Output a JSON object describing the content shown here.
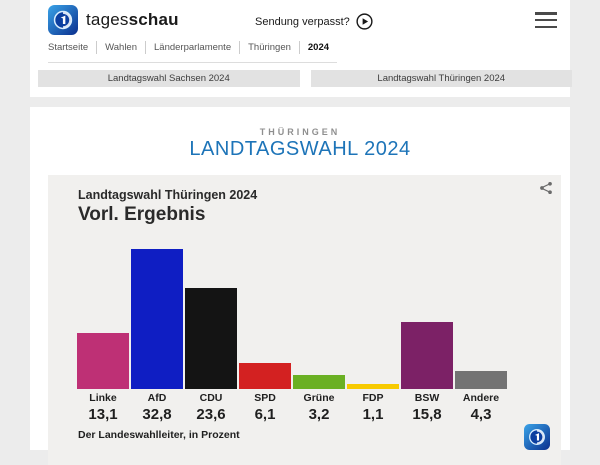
{
  "header": {
    "brand_regular": "tages",
    "brand_bold": "schau",
    "sendung_verpasst": "Sendung verpasst?",
    "breadcrumb": [
      "Startseite",
      "Wahlen",
      "Länderparlamente",
      "Thüringen",
      "2024"
    ],
    "tabs": [
      {
        "label": "Landtagswahl Sachsen 2024"
      },
      {
        "label": "Landtagswahl Thüringen 2024"
      }
    ]
  },
  "main": {
    "eyebrow": "THÜRINGEN",
    "title": "LANDTAGSWAHL 2024",
    "title_color": "#1d74b8"
  },
  "chart_data": {
    "type": "bar",
    "title": "Landtagswahl Thüringen 2024",
    "subtitle": "Vorl. Ergebnis",
    "source": "Der Landeswahlleiter, in Prozent",
    "unit": "Prozent",
    "categories": [
      "Linke",
      "AfD",
      "CDU",
      "SPD",
      "Grüne",
      "FDP",
      "BSW",
      "Andere"
    ],
    "values": [
      13.1,
      32.8,
      23.6,
      6.1,
      3.2,
      1.1,
      15.8,
      4.3
    ],
    "value_labels": [
      "13,1",
      "32,8",
      "23,6",
      "6,1",
      "3,2",
      "1,1",
      "15,8",
      "4,3"
    ],
    "colors": [
      "#be3075",
      "#0f1ec3",
      "#141414",
      "#d32121",
      "#6ab023",
      "#f7ca00",
      "#7c2166",
      "#737373"
    ],
    "ylim": [
      0,
      33
    ],
    "grid": false,
    "legend": "none"
  }
}
